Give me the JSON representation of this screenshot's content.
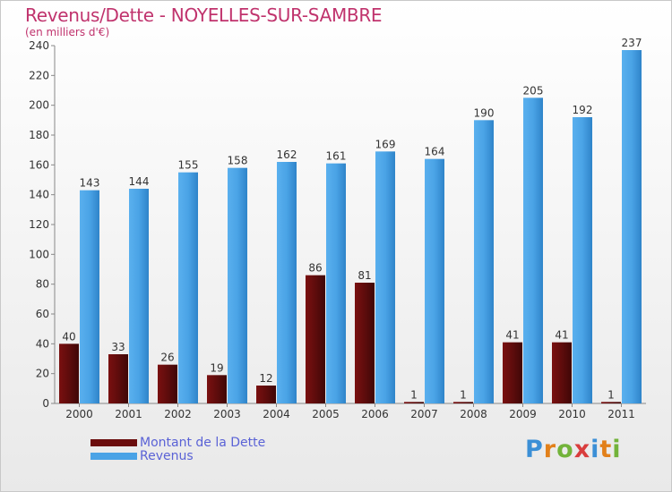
{
  "header": {
    "title": "Revenus/Dette - NOYELLES-SUR-SAMBRE",
    "subtitle": "(en milliers d'€)"
  },
  "chart_data": {
    "type": "bar",
    "categories": [
      "2000",
      "2001",
      "2002",
      "2003",
      "2004",
      "2005",
      "2006",
      "2007",
      "2008",
      "2009",
      "2010",
      "2011"
    ],
    "series": [
      {
        "name": "Montant de la Dette",
        "color": "#6b0d0d",
        "values": [
          40,
          33,
          26,
          19,
          12,
          86,
          81,
          1,
          1,
          41,
          41,
          1
        ]
      },
      {
        "name": "Revenus",
        "color": "#4aa3e6",
        "values": [
          143,
          144,
          155,
          158,
          162,
          161,
          169,
          164,
          190,
          205,
          192,
          237
        ]
      }
    ],
    "ylim": [
      0,
      240
    ],
    "yticks": [
      0,
      20,
      40,
      60,
      80,
      100,
      120,
      140,
      160,
      180,
      200,
      220,
      240
    ],
    "grid": false,
    "legend_position": "bottom-left"
  },
  "legend": {
    "items": [
      {
        "label": "Montant de la Dette",
        "color": "#6b0d0d"
      },
      {
        "label": "Revenus",
        "color": "#4aa3e6"
      }
    ]
  },
  "logo": {
    "letters": [
      "P",
      "r",
      "o",
      "x",
      "i",
      "t",
      "i"
    ]
  }
}
